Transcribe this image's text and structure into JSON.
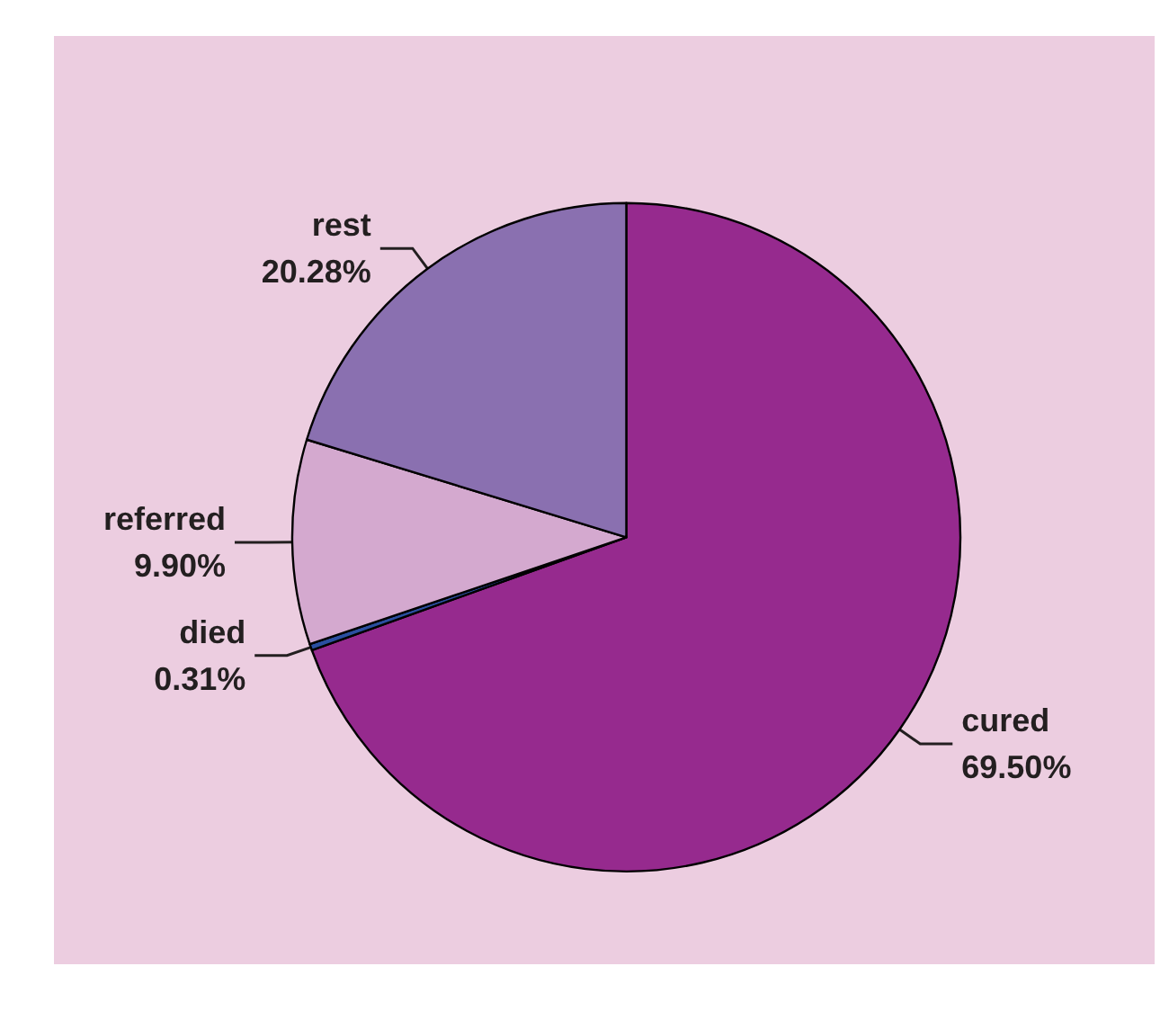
{
  "chart_data": {
    "type": "pie",
    "categories": [
      "cured",
      "died",
      "referred",
      "rest"
    ],
    "values": [
      69.5,
      0.31,
      9.9,
      20.28
    ],
    "value_labels": [
      "69.50%",
      "0.31%",
      "9.90%",
      "20.28%"
    ],
    "colors": [
      "#962a8e",
      "#2a4fa0",
      "#d4a9cf",
      "#8a70b0"
    ]
  }
}
